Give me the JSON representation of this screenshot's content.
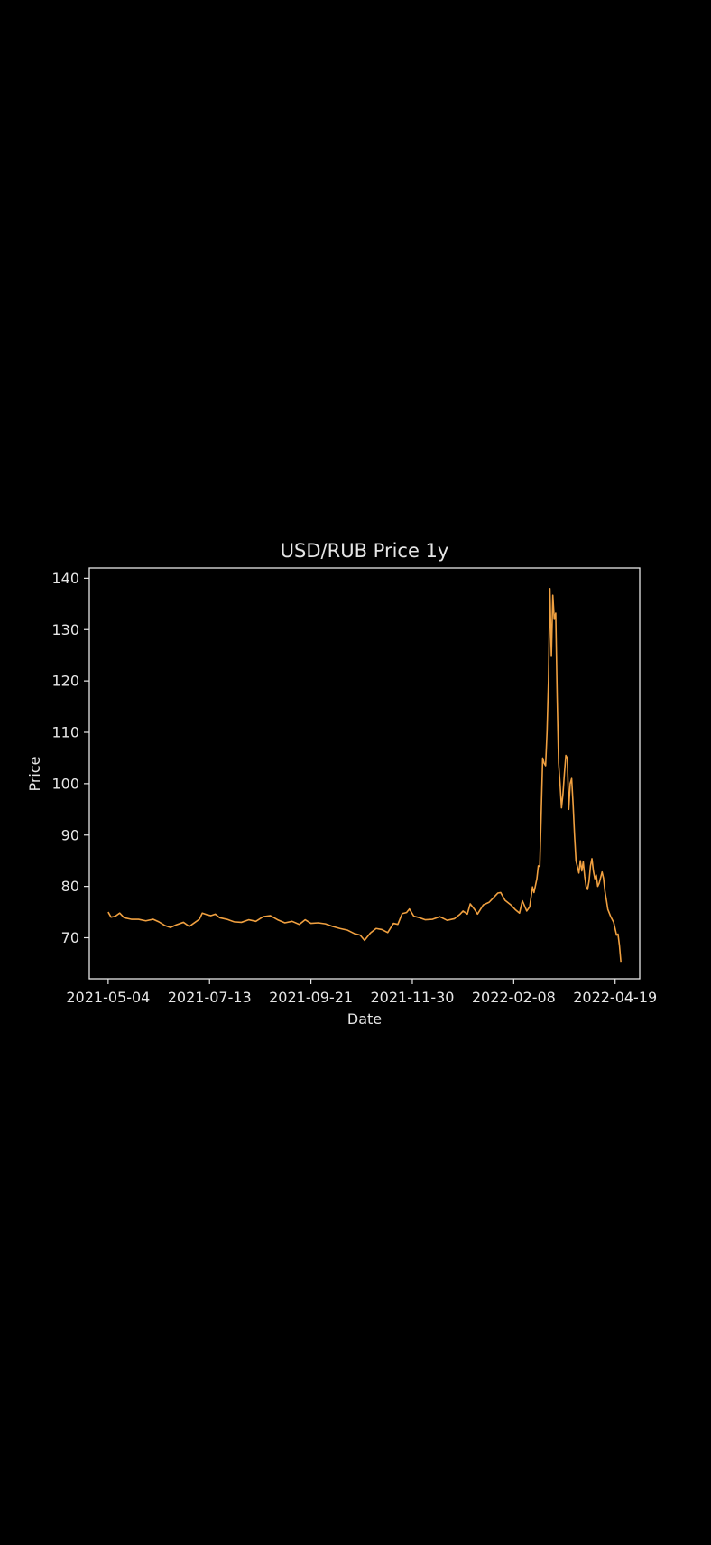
{
  "chart_data": {
    "type": "line",
    "title": "USD/RUB Price 1y",
    "xlabel": "Date",
    "ylabel": "Price",
    "ylim": [
      62,
      142
    ],
    "xlim": [
      "2021-04-21",
      "2022-05-06"
    ],
    "yticks": [
      70,
      80,
      90,
      100,
      110,
      120,
      130,
      140
    ],
    "xticks": [
      "2021-05-04",
      "2021-07-13",
      "2021-09-21",
      "2021-11-30",
      "2022-02-08",
      "2022-04-19"
    ],
    "grid": false,
    "line_color": "#f0a040",
    "background_color": "#000000",
    "axes_color": "#e6e6e6",
    "series": [
      {
        "points": [
          [
            "2021-05-04",
            75.0
          ],
          [
            "2021-05-06",
            74.0
          ],
          [
            "2021-05-09",
            74.2
          ],
          [
            "2021-05-12",
            74.8
          ],
          [
            "2021-05-15",
            73.9
          ],
          [
            "2021-05-20",
            73.6
          ],
          [
            "2021-05-25",
            73.6
          ],
          [
            "2021-05-30",
            73.3
          ],
          [
            "2021-06-04",
            73.6
          ],
          [
            "2021-06-08",
            73.1
          ],
          [
            "2021-06-12",
            72.4
          ],
          [
            "2021-06-16",
            72.0
          ],
          [
            "2021-06-20",
            72.5
          ],
          [
            "2021-06-25",
            73.0
          ],
          [
            "2021-06-29",
            72.2
          ],
          [
            "2021-07-02",
            72.8
          ],
          [
            "2021-07-06",
            73.6
          ],
          [
            "2021-07-08",
            74.8
          ],
          [
            "2021-07-11",
            74.5
          ],
          [
            "2021-07-14",
            74.3
          ],
          [
            "2021-07-17",
            74.6
          ],
          [
            "2021-07-20",
            73.9
          ],
          [
            "2021-07-25",
            73.6
          ],
          [
            "2021-07-30",
            73.1
          ],
          [
            "2021-08-04",
            73.0
          ],
          [
            "2021-08-09",
            73.5
          ],
          [
            "2021-08-14",
            73.2
          ],
          [
            "2021-08-19",
            74.1
          ],
          [
            "2021-08-24",
            74.3
          ],
          [
            "2021-08-29",
            73.5
          ],
          [
            "2021-09-03",
            72.9
          ],
          [
            "2021-09-08",
            73.2
          ],
          [
            "2021-09-13",
            72.6
          ],
          [
            "2021-09-17",
            73.5
          ],
          [
            "2021-09-21",
            72.8
          ],
          [
            "2021-09-26",
            72.9
          ],
          [
            "2021-10-01",
            72.7
          ],
          [
            "2021-10-06",
            72.2
          ],
          [
            "2021-10-11",
            71.8
          ],
          [
            "2021-10-16",
            71.5
          ],
          [
            "2021-10-21",
            70.8
          ],
          [
            "2021-10-25",
            70.5
          ],
          [
            "2021-10-28",
            69.5
          ],
          [
            "2021-11-01",
            70.9
          ],
          [
            "2021-11-05",
            71.8
          ],
          [
            "2021-11-09",
            71.6
          ],
          [
            "2021-11-13",
            71.0
          ],
          [
            "2021-11-17",
            72.8
          ],
          [
            "2021-11-20",
            72.6
          ],
          [
            "2021-11-23",
            74.7
          ],
          [
            "2021-11-26",
            74.9
          ],
          [
            "2021-11-28",
            75.6
          ],
          [
            "2021-12-01",
            74.2
          ],
          [
            "2021-12-05",
            73.9
          ],
          [
            "2021-12-09",
            73.5
          ],
          [
            "2021-12-14",
            73.6
          ],
          [
            "2021-12-19",
            74.1
          ],
          [
            "2021-12-24",
            73.4
          ],
          [
            "2021-12-29",
            73.7
          ],
          [
            "2022-01-02",
            74.6
          ],
          [
            "2022-01-04",
            75.2
          ],
          [
            "2022-01-07",
            74.6
          ],
          [
            "2022-01-09",
            76.6
          ],
          [
            "2022-01-12",
            75.5
          ],
          [
            "2022-01-14",
            74.6
          ],
          [
            "2022-01-18",
            76.4
          ],
          [
            "2022-01-22",
            76.9
          ],
          [
            "2022-01-25",
            77.8
          ],
          [
            "2022-01-28",
            78.7
          ],
          [
            "2022-01-30",
            78.8
          ],
          [
            "2022-02-02",
            77.3
          ],
          [
            "2022-02-06",
            76.4
          ],
          [
            "2022-02-09",
            75.5
          ],
          [
            "2022-02-12",
            74.8
          ],
          [
            "2022-02-14",
            77.2
          ],
          [
            "2022-02-17",
            75.2
          ],
          [
            "2022-02-19",
            76.0
          ],
          [
            "2022-02-21",
            79.9
          ],
          [
            "2022-02-22",
            78.8
          ],
          [
            "2022-02-24",
            81.5
          ],
          [
            "2022-02-25",
            84.0
          ],
          [
            "2022-02-26",
            83.9
          ],
          [
            "2022-02-28",
            105.0
          ],
          [
            "2022-03-01",
            104.0
          ],
          [
            "2022-03-02",
            103.5
          ],
          [
            "2022-03-03",
            110.0
          ],
          [
            "2022-03-04",
            120.0
          ],
          [
            "2022-03-05",
            138.0
          ],
          [
            "2022-03-06",
            124.8
          ],
          [
            "2022-03-07",
            136.7
          ],
          [
            "2022-03-08",
            132.0
          ],
          [
            "2022-03-09",
            133.2
          ],
          [
            "2022-03-10",
            117.0
          ],
          [
            "2022-03-11",
            104.0
          ],
          [
            "2022-03-12",
            100.0
          ],
          [
            "2022-03-13",
            95.3
          ],
          [
            "2022-03-14",
            98.0
          ],
          [
            "2022-03-15",
            102.0
          ],
          [
            "2022-03-16",
            105.5
          ],
          [
            "2022-03-17",
            105.0
          ],
          [
            "2022-03-18",
            95.0
          ],
          [
            "2022-03-19",
            100.0
          ],
          [
            "2022-03-20",
            101.0
          ],
          [
            "2022-03-21",
            96.0
          ],
          [
            "2022-03-22",
            90.0
          ],
          [
            "2022-03-23",
            85.0
          ],
          [
            "2022-03-25",
            82.6
          ],
          [
            "2022-03-26",
            85.0
          ],
          [
            "2022-03-27",
            83.0
          ],
          [
            "2022-03-28",
            84.8
          ],
          [
            "2022-03-29",
            82.0
          ],
          [
            "2022-03-30",
            80.0
          ],
          [
            "2022-03-31",
            79.4
          ],
          [
            "2022-04-01",
            81.0
          ],
          [
            "2022-04-02",
            84.0
          ],
          [
            "2022-04-03",
            85.4
          ],
          [
            "2022-04-04",
            83.0
          ],
          [
            "2022-04-05",
            81.5
          ],
          [
            "2022-04-06",
            82.2
          ],
          [
            "2022-04-07",
            80.0
          ],
          [
            "2022-04-08",
            80.6
          ],
          [
            "2022-04-10",
            82.8
          ],
          [
            "2022-04-11",
            81.6
          ],
          [
            "2022-04-12",
            79.0
          ],
          [
            "2022-04-13",
            77.3
          ],
          [
            "2022-04-14",
            75.5
          ],
          [
            "2022-04-16",
            74.1
          ],
          [
            "2022-04-18",
            73.0
          ],
          [
            "2022-04-20",
            70.5
          ],
          [
            "2022-04-21",
            70.7
          ],
          [
            "2022-04-22",
            68.5
          ],
          [
            "2022-04-23",
            65.3
          ]
        ]
      }
    ]
  }
}
